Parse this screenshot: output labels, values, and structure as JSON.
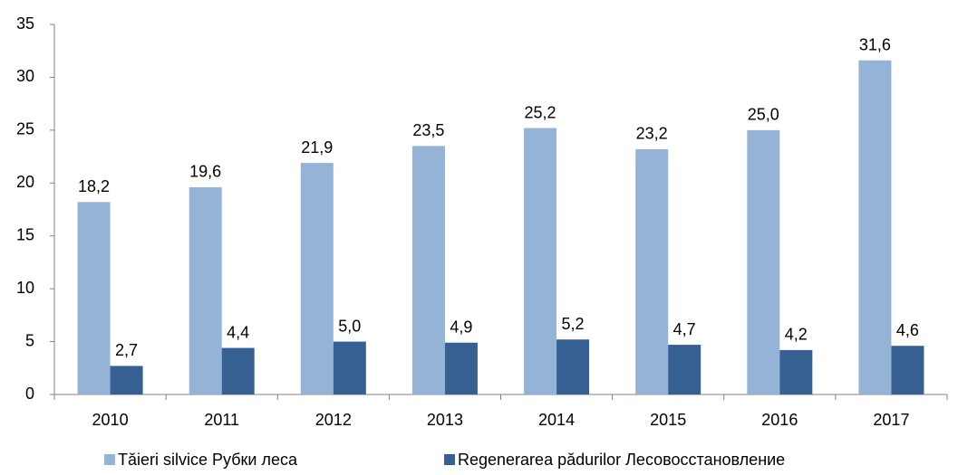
{
  "chart_data": {
    "type": "bar",
    "categories": [
      "2010",
      "2011",
      "2012",
      "2013",
      "2014",
      "2015",
      "2016",
      "2017"
    ],
    "series": [
      {
        "name": "Tăieri silvice Рубки леса",
        "color": "#95b3d7",
        "values": [
          18.2,
          19.6,
          21.9,
          23.5,
          25.2,
          23.2,
          25.0,
          31.6
        ],
        "value_labels": [
          "18,2",
          "19,6",
          "21,9",
          "23,5",
          "25,2",
          "23,2",
          "25,0",
          "31,6"
        ]
      },
      {
        "name": "Regenerarea pădurilor Лесовосстановление",
        "color": "#376092",
        "values": [
          2.7,
          4.4,
          5.0,
          4.9,
          5.2,
          4.7,
          4.2,
          4.6
        ],
        "value_labels": [
          "2,7",
          "4,4",
          "5,0",
          "4,9",
          "5,2",
          "4,7",
          "4,2",
          "4,6"
        ]
      }
    ],
    "ylim": [
      0,
      35
    ],
    "yticks": [
      0,
      5,
      10,
      15,
      20,
      25,
      30,
      35
    ],
    "grid": false,
    "legend": "bottom"
  }
}
